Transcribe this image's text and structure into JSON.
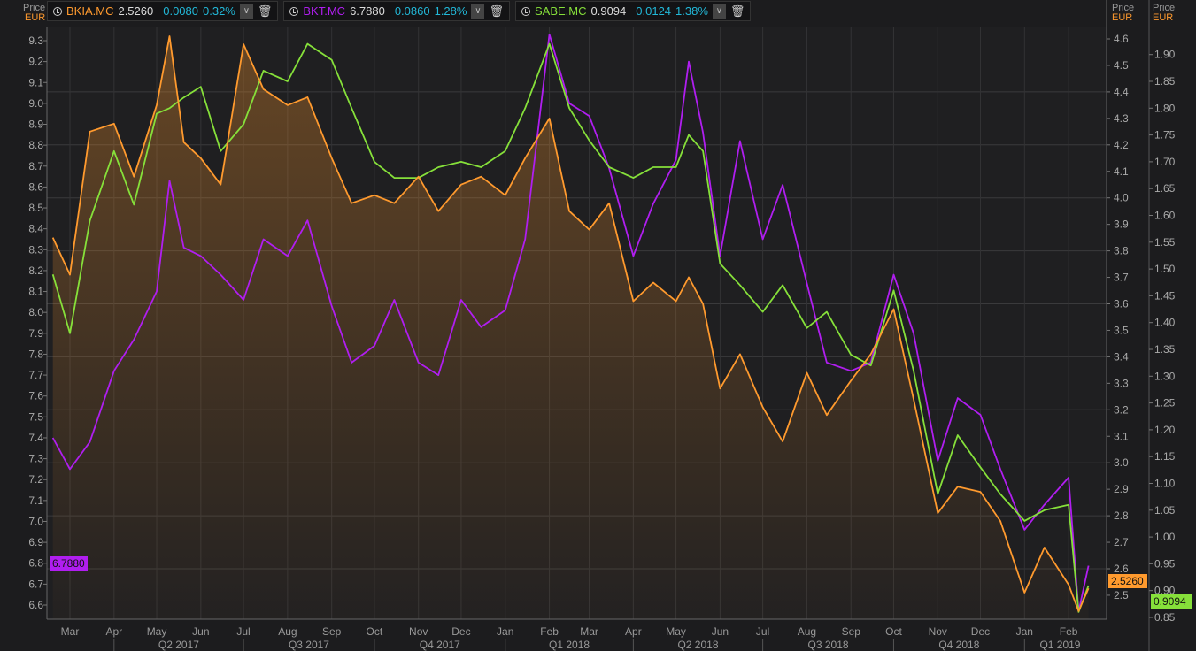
{
  "axis_header": {
    "price_label": "Price",
    "currency_label": "EUR"
  },
  "legend": [
    {
      "symbol": "BKIA.MC",
      "last": "2.5260",
      "change": "0.0080",
      "pct": "0.32%",
      "color": "#ff9a2e",
      "icons": [
        "clock-icon",
        "chevron-down-icon",
        "trash-icon"
      ]
    },
    {
      "symbol": "BKT.MC",
      "last": "6.7880",
      "change": "0.0860",
      "pct": "1.28%",
      "color": "#b01ef0",
      "icons": [
        "clock-icon",
        "chevron-down-icon",
        "trash-icon"
      ]
    },
    {
      "symbol": "SABE.MC",
      "last": "0.9094",
      "change": "0.0124",
      "pct": "1.38%",
      "color": "#86e03a",
      "icons": [
        "clock-icon",
        "chevron-down-icon",
        "trash-icon"
      ]
    }
  ],
  "price_tags": {
    "bkt": "6.7880",
    "bkia": "2.5260",
    "sabe": "0.9094"
  },
  "chart_data": {
    "type": "line",
    "grid": true,
    "x_months": [
      "Mar",
      "Apr",
      "May",
      "Jun",
      "Jul",
      "Aug",
      "Sep",
      "Oct",
      "Nov",
      "Dec",
      "Jan",
      "Feb",
      "Mar",
      "Apr",
      "May",
      "Jun",
      "Jul",
      "Aug",
      "Sep",
      "Oct",
      "Nov",
      "Dec",
      "Jan",
      "Feb"
    ],
    "x_quarters": [
      "Q2 2017",
      "Q3 2017",
      "Q4 2017",
      "Q1 2018",
      "Q2 2018",
      "Q3 2018",
      "Q4 2018",
      "Q1 2019"
    ],
    "axes": {
      "left": {
        "series": "BKT.MC",
        "range": [
          6.6,
          9.3
        ],
        "ticks": [
          "6.6",
          "6.7",
          "6.8",
          "6.9",
          "7.0",
          "7.1",
          "7.2",
          "7.3",
          "7.4",
          "7.5",
          "7.6",
          "7.7",
          "7.8",
          "7.9",
          "8.0",
          "8.1",
          "8.2",
          "8.3",
          "8.4",
          "8.5",
          "8.6",
          "8.7",
          "8.8",
          "8.9",
          "9.0",
          "9.1",
          "9.2",
          "9.3"
        ]
      },
      "middle": {
        "series": "BKIA.MC",
        "range": [
          2.5,
          4.6
        ],
        "ticks": [
          "2.5",
          "2.6",
          "2.7",
          "2.8",
          "2.9",
          "3.0",
          "3.1",
          "3.2",
          "3.3",
          "3.4",
          "3.5",
          "3.6",
          "3.7",
          "3.8",
          "3.9",
          "4.0",
          "4.1",
          "4.2",
          "4.3",
          "4.4",
          "4.5",
          "4.6"
        ]
      },
      "right": {
        "series": "SABE.MC",
        "range": [
          0.85,
          1.9
        ],
        "ticks": [
          "0.85",
          "0.90",
          "0.95",
          "1.00",
          "1.05",
          "1.10",
          "1.15",
          "1.20",
          "1.25",
          "1.30",
          "1.35",
          "1.40",
          "1.45",
          "1.50",
          "1.55",
          "1.60",
          "1.65",
          "1.70",
          "1.75",
          "1.80",
          "1.85",
          "1.90"
        ]
      }
    },
    "dates": [
      "2017-02-17",
      "2017-03-01",
      "2017-03-15",
      "2017-04-01",
      "2017-04-15",
      "2017-05-01",
      "2017-05-10",
      "2017-05-20",
      "2017-06-01",
      "2017-06-15",
      "2017-07-01",
      "2017-07-15",
      "2017-08-01",
      "2017-08-15",
      "2017-09-01",
      "2017-09-15",
      "2017-10-01",
      "2017-10-15",
      "2017-11-01",
      "2017-11-15",
      "2017-12-01",
      "2017-12-15",
      "2018-01-01",
      "2018-01-15",
      "2018-02-01",
      "2018-02-15",
      "2018-03-01",
      "2018-03-15",
      "2018-04-01",
      "2018-04-15",
      "2018-05-01",
      "2018-05-10",
      "2018-05-20",
      "2018-06-01",
      "2018-06-15",
      "2018-07-01",
      "2018-07-15",
      "2018-08-01",
      "2018-08-15",
      "2018-09-01",
      "2018-09-15",
      "2018-10-01",
      "2018-10-15",
      "2018-11-01",
      "2018-11-15",
      "2018-12-01",
      "2018-12-15",
      "2019-01-01",
      "2019-01-15",
      "2019-02-01",
      "2019-02-08",
      "2019-02-15"
    ],
    "series": [
      {
        "name": "BKIA.MC",
        "axis": "middle",
        "color": "#ff9a2e",
        "area": true,
        "values": [
          3.85,
          3.71,
          4.25,
          4.28,
          4.08,
          4.35,
          4.61,
          4.21,
          4.15,
          4.05,
          4.58,
          4.41,
          4.35,
          4.38,
          4.15,
          3.98,
          4.01,
          3.98,
          4.08,
          3.95,
          4.05,
          4.08,
          4.01,
          4.15,
          4.3,
          3.95,
          3.88,
          3.98,
          3.61,
          3.68,
          3.61,
          3.7,
          3.6,
          3.28,
          3.41,
          3.21,
          3.08,
          3.34,
          3.18,
          3.31,
          3.41,
          3.58,
          3.24,
          2.81,
          2.91,
          2.89,
          2.78,
          2.51,
          2.68,
          2.54,
          2.44,
          2.526
        ]
      },
      {
        "name": "BKT.MC",
        "axis": "left",
        "color": "#b01ef0",
        "values": [
          7.4,
          7.25,
          7.38,
          7.72,
          7.87,
          8.1,
          8.63,
          8.31,
          8.27,
          8.18,
          8.06,
          8.35,
          8.27,
          8.44,
          8.03,
          7.76,
          7.84,
          8.06,
          7.76,
          7.7,
          8.06,
          7.93,
          8.01,
          8.35,
          9.33,
          9.0,
          8.94,
          8.69,
          8.27,
          8.52,
          8.73,
          9.2,
          8.86,
          8.27,
          8.82,
          8.35,
          8.61,
          8.14,
          7.76,
          7.72,
          7.76,
          8.18,
          7.9,
          7.29,
          7.59,
          7.51,
          7.25,
          6.96,
          7.08,
          7.21,
          6.57,
          6.788
        ]
      },
      {
        "name": "SABE.MC",
        "axis": "right",
        "color": "#86e03a",
        "values": [
          1.49,
          1.38,
          1.59,
          1.72,
          1.62,
          1.79,
          1.8,
          1.82,
          1.84,
          1.72,
          1.77,
          1.87,
          1.85,
          1.92,
          1.89,
          1.8,
          1.7,
          1.67,
          1.67,
          1.69,
          1.7,
          1.69,
          1.72,
          1.8,
          1.92,
          1.8,
          1.74,
          1.69,
          1.67,
          1.69,
          1.69,
          1.75,
          1.72,
          1.51,
          1.47,
          1.42,
          1.47,
          1.39,
          1.42,
          1.34,
          1.32,
          1.46,
          1.31,
          1.08,
          1.19,
          1.13,
          1.08,
          1.03,
          1.05,
          1.06,
          0.86,
          0.9094
        ]
      }
    ]
  }
}
